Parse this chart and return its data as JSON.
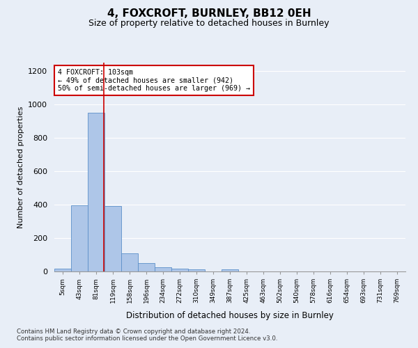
{
  "title1": "4, FOXCROFT, BURNLEY, BB12 0EH",
  "title2": "Size of property relative to detached houses in Burnley",
  "xlabel": "Distribution of detached houses by size in Burnley",
  "ylabel": "Number of detached properties",
  "footnote1": "Contains HM Land Registry data © Crown copyright and database right 2024.",
  "footnote2": "Contains public sector information licensed under the Open Government Licence v3.0.",
  "bar_labels": [
    "5sqm",
    "43sqm",
    "81sqm",
    "119sqm",
    "158sqm",
    "196sqm",
    "234sqm",
    "272sqm",
    "310sqm",
    "349sqm",
    "387sqm",
    "425sqm",
    "463sqm",
    "502sqm",
    "540sqm",
    "578sqm",
    "616sqm",
    "654sqm",
    "693sqm",
    "731sqm",
    "769sqm"
  ],
  "bar_values": [
    15,
    395,
    950,
    390,
    110,
    52,
    25,
    15,
    12,
    0,
    12,
    0,
    0,
    0,
    0,
    0,
    0,
    0,
    0,
    0,
    0
  ],
  "bar_color": "#aec6e8",
  "bar_edge_color": "#5b8fc9",
  "ylim": [
    0,
    1250
  ],
  "yticks": [
    0,
    200,
    400,
    600,
    800,
    1000,
    1200
  ],
  "annotation_text": "4 FOXCROFT: 103sqm\n← 49% of detached houses are smaller (942)\n50% of semi-detached houses are larger (969) →",
  "annotation_box_color": "#ffffff",
  "annotation_edge_color": "#cc0000",
  "vline_x": 2.45,
  "vline_color": "#cc0000",
  "bg_color": "#e8eef7",
  "grid_color": "#ffffff"
}
